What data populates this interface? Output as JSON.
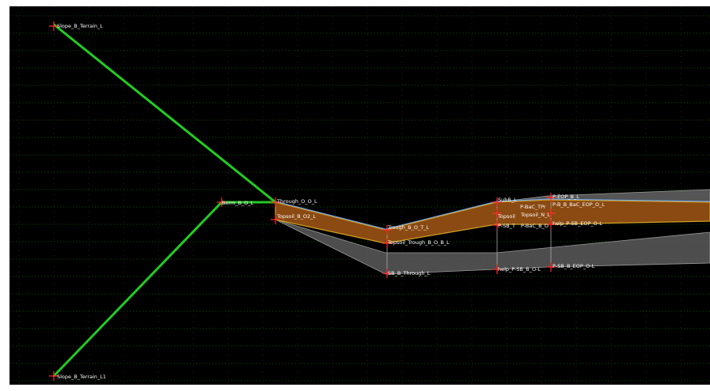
{
  "colors": {
    "background": "#000000",
    "grid": "#1f6f1f",
    "slope_line": "#22cc22",
    "surface_fill": "#8a4a12",
    "surface_edge": "#d4a020",
    "top_edge_blue": "#6fa8ff",
    "subgrade_fill": "#5a5a5a",
    "subgrade_edge": "#9a9a9a",
    "point_marker": "#ff2a2a",
    "label_text": "#ffffff"
  },
  "labels": {
    "slope_terrain_top": "Slope_B_Terrain_L",
    "slope_terrain_bottom": "Slope_B_Terrain_L1",
    "berm": "Berm_B_O_L",
    "through_top": "Through_O_O_L",
    "topsoil_o2": "Topsoil_B_O2_L",
    "trough_top": "Trough_B_O_T_L",
    "topsoil_trough": "Topsoil_Trough_B_O_B_L",
    "sb_through": "SB_B_Through_L",
    "subbase_top": "SubB_L",
    "pbc_left": "P-BaC_TPr",
    "topsoil_n": "Topsoil_N_L",
    "topsoil_mid": "Topsoil",
    "psb_t": "P-SB_T",
    "pbc_b": "P-BaC_B_O",
    "help_psb": "help_P-SB_B_O-L",
    "peop_top": "P-EOP_B_L",
    "pbc_eop": "P-B_B_BaC_EOP_O_L",
    "help_sb_eop": "help_P-SB_EOP_O-L",
    "psb_eop": "P-SB_B_EOP_O-L"
  }
}
